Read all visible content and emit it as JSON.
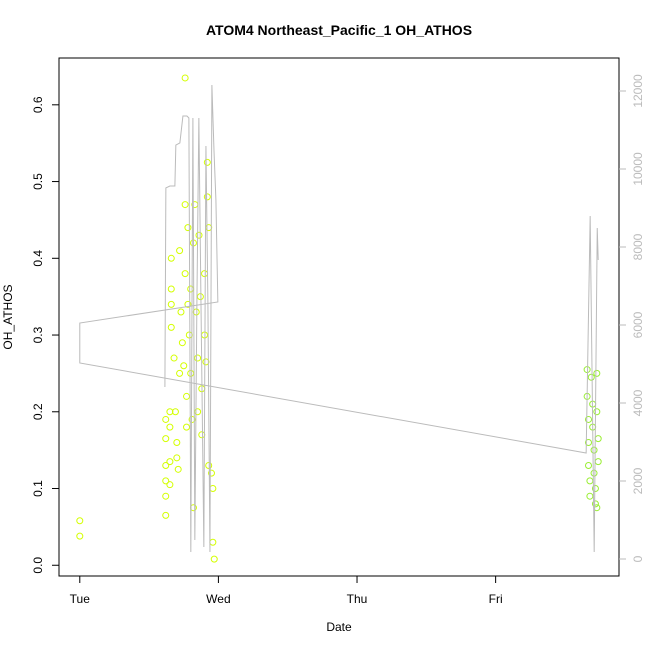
{
  "chart_data": {
    "type": "scatter",
    "title": "ATOM4 Northeast_Pacific_1 OH_ATHOS",
    "x_label": "Date",
    "y_label": "OH_ATHOS",
    "xlim": [
      -0.15,
      3.89
    ],
    "ylim": [
      -0.014,
      0.661
    ],
    "y2lim": [
      -436,
      12846
    ],
    "xticks": [
      {
        "value": 0,
        "label": "Tue"
      },
      {
        "value": 1,
        "label": "Wed"
      },
      {
        "value": 2,
        "label": "Thu"
      },
      {
        "value": 3,
        "label": "Fri"
      }
    ],
    "yticks": [
      {
        "value": 0,
        "label": "0.0"
      },
      0.1,
      0.2,
      0.3,
      0.4,
      0.5,
      0.6
    ],
    "y2ticks": [
      0,
      2000,
      4000,
      6000,
      8000,
      10000,
      12000
    ],
    "series": [
      {
        "color": "#d4ff00",
        "x": [
          0,
          0,
          0.62,
          0.62,
          0.62,
          0.62,
          0.62,
          0.62,
          0.65,
          0.65,
          0.65,
          0.65,
          0.66,
          0.66,
          0.66,
          0.66,
          0.68,
          0.69,
          0.7,
          0.7,
          0.71,
          0.72,
          0.72,
          0.73,
          0.74,
          0.75,
          0.76,
          0.76,
          0.76,
          0.77,
          0.77,
          0.78,
          0.78,
          0.79,
          0.8,
          0.8,
          0.81,
          0.82,
          0.82,
          0.83,
          0.84,
          0.85,
          0.85,
          0.86,
          0.87,
          0.88,
          0.88,
          0.9,
          0.9,
          0.91,
          0.92,
          0.92,
          0.93,
          0.93,
          0.95,
          0.96,
          0.96,
          0.97
        ],
        "values": [
          0.058,
          0.038,
          0.19,
          0.165,
          0.13,
          0.11,
          0.09,
          0.065,
          0.135,
          0.105,
          0.18,
          0.2,
          0.4,
          0.36,
          0.34,
          0.31,
          0.27,
          0.2,
          0.16,
          0.14,
          0.125,
          0.25,
          0.41,
          0.33,
          0.29,
          0.26,
          0.635,
          0.47,
          0.38,
          0.22,
          0.18,
          0.34,
          0.44,
          0.3,
          0.36,
          0.25,
          0.19,
          0.075,
          0.42,
          0.47,
          0.33,
          0.27,
          0.2,
          0.43,
          0.35,
          0.23,
          0.17,
          0.38,
          0.3,
          0.265,
          0.525,
          0.48,
          0.44,
          0.13,
          0.12,
          0.1,
          0.03,
          0.008
        ]
      },
      {
        "color": "#99ee33",
        "x": [
          3.66,
          3.66,
          3.67,
          3.67,
          3.67,
          3.68,
          3.68,
          3.69,
          3.7,
          3.7,
          3.71,
          3.71,
          3.72,
          3.72,
          3.73,
          3.73,
          3.74,
          3.74,
          3.73
        ],
        "values": [
          0.255,
          0.22,
          0.19,
          0.16,
          0.13,
          0.11,
          0.09,
          0.245,
          0.21,
          0.18,
          0.15,
          0.12,
          0.1,
          0.08,
          0.25,
          0.2,
          0.165,
          0.135,
          0.075
        ]
      },
      {
        "type": "line",
        "axis": "y2",
        "color": "#bbbbbb",
        "x": [
          0.614,
          0.621,
          0.65,
          0.686,
          0.693,
          0.722,
          0.744,
          0.773,
          0.787,
          0.801,
          0.816,
          0.83,
          0.845,
          0.859,
          0.874,
          0.895,
          0.91,
          0.924,
          0.939,
          0.953,
          0.968,
          0.982,
          0.996,
          0,
          0,
          3.653,
          3.682,
          3.711,
          3.733,
          3.74
        ],
        "values": [
          4410,
          9513,
          9564,
          9564,
          10615,
          10667,
          11359,
          11359,
          11308,
          179,
          11308,
          487,
          6641,
          11308,
          6641,
          308,
          10590,
          6641,
          179,
          12154,
          10487,
          9205,
          6590,
          6051,
          5026,
          2718,
          8795,
          179,
          8487,
          7667
        ]
      }
    ]
  }
}
